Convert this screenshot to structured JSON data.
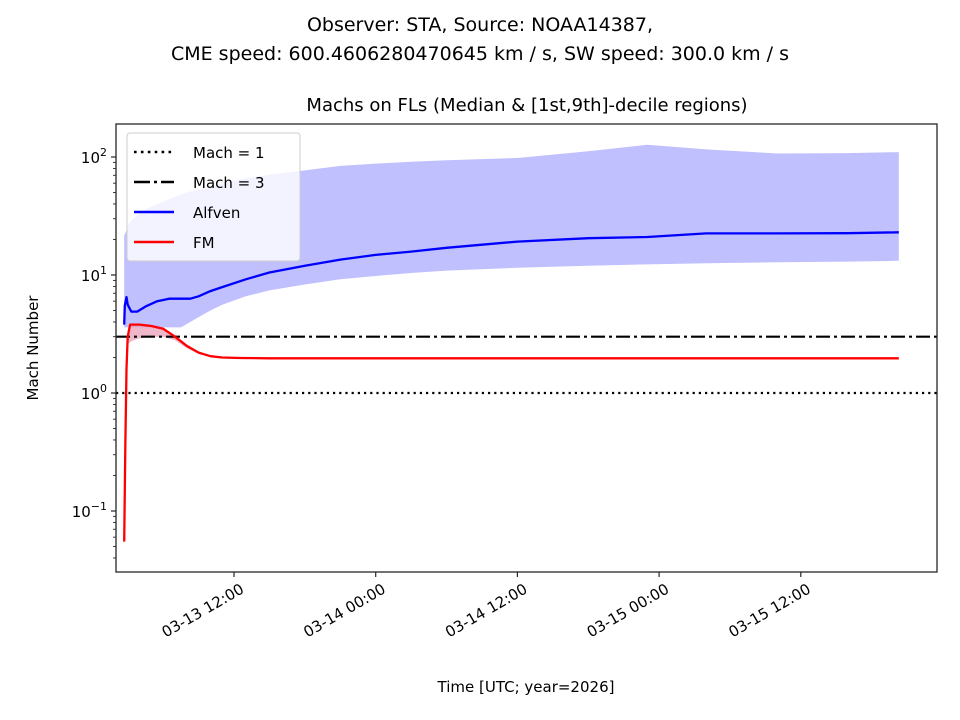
{
  "chart_data": {
    "type": "line",
    "suptitle_lines": [
      "Observer: STA, Source: NOAA14387,",
      "CME speed: 600.4606280470645 km / s, SW speed: 300.0 km / s"
    ],
    "title": "Machs on FLs (Median & [1st,9th]-decile regions)",
    "xlabel": "Time [UTC; year=2026]",
    "ylabel": "Mach Number",
    "yscale": "log",
    "ylim": [
      0.03,
      190
    ],
    "xlim_hours_from_0313_0000": [
      1.7,
      71.5
    ],
    "x_unit": "hours since 2026-03-13 00:00 UTC",
    "x_ticks": [
      {
        "hours": 12,
        "label": "03-13 12:00"
      },
      {
        "hours": 24,
        "label": "03-14 00:00"
      },
      {
        "hours": 36,
        "label": "03-14 12:00"
      },
      {
        "hours": 48,
        "label": "03-15 00:00"
      },
      {
        "hours": 60,
        "label": "03-15 12:00"
      }
    ],
    "y_ticks": [
      {
        "value": 0.1,
        "base": "10",
        "exp": "−1"
      },
      {
        "value": 1,
        "base": "10",
        "exp": "0"
      },
      {
        "value": 10,
        "base": "10",
        "exp": "1"
      },
      {
        "value": 100,
        "base": "10",
        "exp": "2"
      }
    ],
    "hlines": [
      {
        "name": "Mach = 1",
        "value": 1,
        "style": "dotted",
        "color": "#000000"
      },
      {
        "name": "Mach = 3",
        "value": 3,
        "style": "dashdot",
        "color": "#000000"
      }
    ],
    "series": [
      {
        "name": "Alfven",
        "color": "#0000ff",
        "band_color": "#c0c0ff",
        "x": [
          2.7,
          2.75,
          2.9,
          3.0,
          3.3,
          3.8,
          4.5,
          5.5,
          6.5,
          7.5,
          8.3,
          9.0,
          10.0,
          11.0,
          13.0,
          15.0,
          18.0,
          21.0,
          24.0,
          27.0,
          30.0,
          36.0,
          42.0,
          47.0,
          52.0,
          58.0,
          64.0,
          68.3
        ],
        "median": [
          3.8,
          5.5,
          6.5,
          5.6,
          4.9,
          4.9,
          5.4,
          6.0,
          6.3,
          6.3,
          6.3,
          6.6,
          7.3,
          7.9,
          9.2,
          10.5,
          12.0,
          13.5,
          14.8,
          15.8,
          17.0,
          19.2,
          20.5,
          21.0,
          22.5,
          22.5,
          22.6,
          23.0
        ],
        "p10": [
          3.6,
          3.6,
          3.6,
          3.6,
          3.6,
          3.6,
          3.6,
          3.6,
          3.6,
          3.6,
          4.0,
          4.4,
          5.0,
          5.6,
          6.6,
          7.4,
          8.3,
          9.2,
          9.8,
          10.4,
          10.9,
          11.5,
          12.0,
          12.3,
          12.6,
          12.8,
          13.0,
          13.2
        ],
        "p90": [
          22.0,
          22.0,
          24.0,
          26.0,
          29.0,
          32.0,
          36.0,
          40.0,
          44.0,
          48.0,
          51.0,
          53.0,
          56.0,
          60.0,
          66.0,
          71.0,
          77.0,
          84.0,
          88.0,
          91.0,
          94.0,
          98.0,
          112.0,
          127.0,
          116.0,
          107.0,
          108.0,
          110.0
        ]
      },
      {
        "name": "FM",
        "color": "#ff0000",
        "band_color": "#e8a0b8",
        "x": [
          2.7,
          2.8,
          2.9,
          3.0,
          3.2,
          3.5,
          4.0,
          5.0,
          6.0,
          7.0,
          8.0,
          9.0,
          10.0,
          11.0,
          12.5,
          15.0,
          20.0,
          30.0,
          40.0,
          50.0,
          60.0,
          68.3
        ],
        "median": [
          0.055,
          0.4,
          1.6,
          3.0,
          3.8,
          3.8,
          3.8,
          3.7,
          3.5,
          3.0,
          2.5,
          2.2,
          2.05,
          2.0,
          1.98,
          1.97,
          1.97,
          1.97,
          1.97,
          1.97,
          1.97,
          1.97
        ],
        "p10": [
          0.055,
          0.4,
          1.6,
          2.6,
          2.7,
          2.8,
          2.9,
          3.0,
          3.0,
          2.8,
          2.4,
          2.15,
          2.03,
          1.99,
          1.97,
          1.97,
          1.97,
          1.97,
          1.97,
          1.97,
          1.97,
          1.97
        ],
        "p90": [
          0.055,
          0.4,
          1.6,
          3.1,
          3.9,
          3.9,
          3.9,
          3.8,
          3.6,
          3.1,
          2.6,
          2.25,
          2.08,
          2.02,
          1.99,
          1.98,
          1.98,
          1.98,
          1.98,
          1.98,
          1.98,
          1.98
        ]
      }
    ],
    "legend": {
      "placement": "upper-left",
      "entries": [
        "Mach = 1",
        "Mach = 3",
        "Alfven",
        "FM"
      ]
    },
    "grid": false
  }
}
